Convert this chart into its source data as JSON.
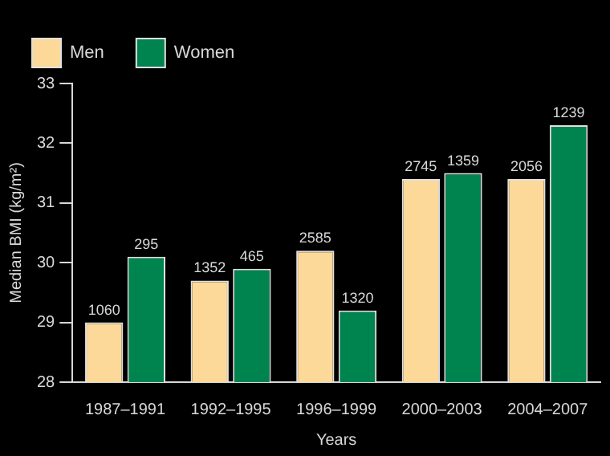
{
  "chart_data": {
    "type": "bar",
    "xlabel": "Years",
    "ylabel": "Median BMI (kg/m²)",
    "categories": [
      "1987–1991",
      "1992–1995",
      "1996–1999",
      "2000–2003",
      "2004–2007"
    ],
    "series": [
      {
        "name": "Men",
        "color": "#fdd999",
        "values": [
          29.0,
          29.7,
          30.2,
          31.4,
          31.4
        ]
      },
      {
        "name": "Women",
        "color": "#00844f",
        "values": [
          30.1,
          29.9,
          29.2,
          31.5,
          32.3
        ]
      }
    ],
    "annotations": [
      {
        "text": "1060",
        "x": "1987–1991",
        "y": 29.0
      },
      {
        "text": "295",
        "x": "1987–1991",
        "y": 30.1
      },
      {
        "text": "1352",
        "x": "1992–1995",
        "y": 29.7
      },
      {
        "text": "465",
        "x": "1992–1995",
        "y": 29.9
      },
      {
        "text": "2585",
        "x": "1996–1999",
        "y": 30.2
      },
      {
        "text": "1320",
        "x": "1996–1999",
        "y": 29.2
      },
      {
        "text": "2745",
        "x": "2000–2003",
        "y": 31.4
      },
      {
        "text": "1359",
        "x": "2000–2003",
        "y": 31.5
      },
      {
        "text": "2056",
        "x": "2004–2007",
        "y": 31.4
      },
      {
        "text": "1239",
        "x": "2004–2007",
        "y": 32.3
      }
    ],
    "ylim": [
      28,
      33
    ],
    "yticks": [
      28,
      29,
      30,
      31,
      32,
      33
    ],
    "grid": false,
    "legend": "top left"
  }
}
